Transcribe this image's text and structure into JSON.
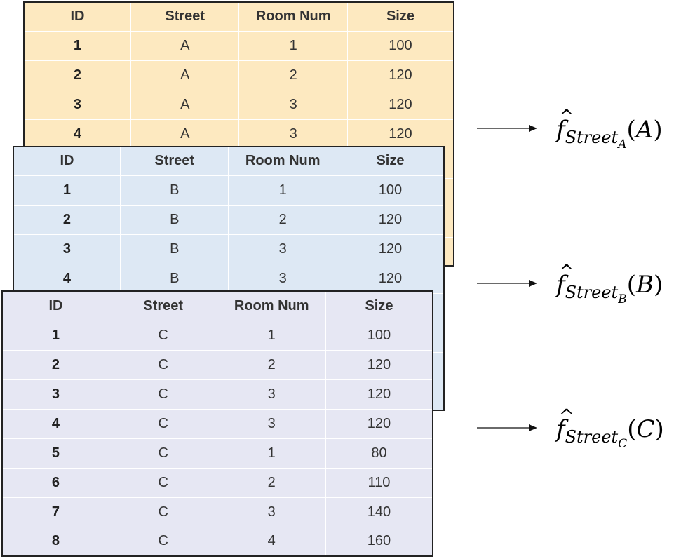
{
  "columns": [
    "ID",
    "Street",
    "Room Num",
    "Size"
  ],
  "tables": {
    "a": {
      "rows": [
        {
          "id": "1",
          "street": "A",
          "room": "1",
          "size": "100"
        },
        {
          "id": "2",
          "street": "A",
          "room": "2",
          "size": "120"
        },
        {
          "id": "3",
          "street": "A",
          "room": "3",
          "size": "120"
        },
        {
          "id": "4",
          "street": "A",
          "room": "3",
          "size": "120"
        }
      ]
    },
    "b": {
      "rows": [
        {
          "id": "1",
          "street": "B",
          "room": "1",
          "size": "100"
        },
        {
          "id": "2",
          "street": "B",
          "room": "2",
          "size": "120"
        },
        {
          "id": "3",
          "street": "B",
          "room": "3",
          "size": "120"
        },
        {
          "id": "4",
          "street": "B",
          "room": "3",
          "size": "120"
        }
      ]
    },
    "c": {
      "rows": [
        {
          "id": "1",
          "street": "C",
          "room": "1",
          "size": "100"
        },
        {
          "id": "2",
          "street": "C",
          "room": "2",
          "size": "120"
        },
        {
          "id": "3",
          "street": "C",
          "room": "3",
          "size": "120"
        },
        {
          "id": "4",
          "street": "C",
          "room": "3",
          "size": "120"
        },
        {
          "id": "5",
          "street": "C",
          "room": "1",
          "size": "80"
        },
        {
          "id": "6",
          "street": "C",
          "room": "2",
          "size": "110"
        },
        {
          "id": "7",
          "street": "C",
          "room": "3",
          "size": "140"
        },
        {
          "id": "8",
          "street": "C",
          "room": "4",
          "size": "160"
        }
      ]
    }
  },
  "formulas": {
    "a": {
      "func": "f",
      "sub": "Street",
      "subsub": "A",
      "arg": "A"
    },
    "b": {
      "func": "f",
      "sub": "Street",
      "subsub": "B",
      "arg": "B"
    },
    "c": {
      "func": "f",
      "sub": "Street",
      "subsub": "C",
      "arg": "C"
    }
  },
  "colors": {
    "table_a_bg": "#fde9c0",
    "table_b_bg": "#dde8f4",
    "table_c_bg": "#e6e7f3",
    "border": "#222222"
  }
}
